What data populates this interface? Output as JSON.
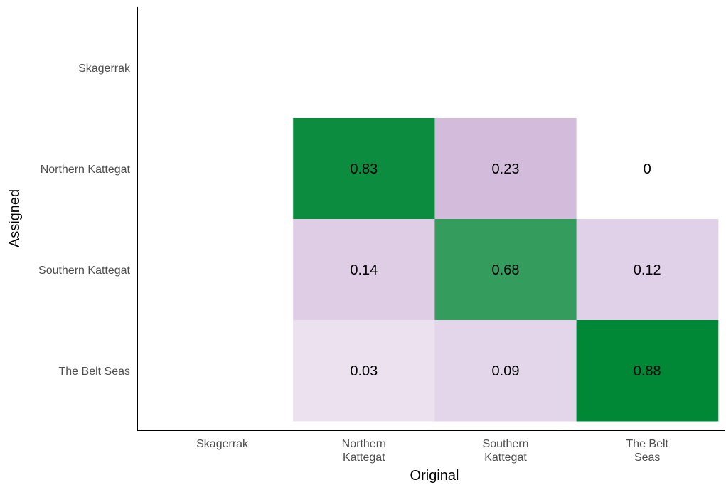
{
  "chart_data": {
    "type": "heatmap",
    "title": "",
    "xlabel": "Original",
    "ylabel": "Assigned",
    "x_categories": [
      "Skagerrak",
      "Northern Kattegat",
      "Southern Kattegat",
      "The Belt Seas"
    ],
    "x_tick_labels": [
      [
        "Skagerrak"
      ],
      [
        "Northern",
        "Kattegat"
      ],
      [
        "Southern",
        "Kattegat"
      ],
      [
        "The Belt",
        "Seas"
      ]
    ],
    "y_categories": [
      "Skagerrak",
      "Northern Kattegat",
      "Southern Kattegat",
      "The Belt Seas"
    ],
    "cells": [
      {
        "x": "Northern Kattegat",
        "y": "Northern Kattegat",
        "value": 0.83,
        "label": "0.83",
        "color": "#0b8c3f"
      },
      {
        "x": "Southern Kattegat",
        "y": "Northern Kattegat",
        "value": 0.23,
        "label": "0.23",
        "color": "#d3bbdb"
      },
      {
        "x": "The Belt Seas",
        "y": "Northern Kattegat",
        "value": 0,
        "label": "0",
        "color": "#ffffff"
      },
      {
        "x": "Northern Kattegat",
        "y": "Southern Kattegat",
        "value": 0.14,
        "label": "0.14",
        "color": "#dfcde6"
      },
      {
        "x": "Southern Kattegat",
        "y": "Southern Kattegat",
        "value": 0.68,
        "label": "0.68",
        "color": "#349d5e"
      },
      {
        "x": "The Belt Seas",
        "y": "Southern Kattegat",
        "value": 0.12,
        "label": "0.12",
        "color": "#e1d1e8"
      },
      {
        "x": "Northern Kattegat",
        "y": "The Belt Seas",
        "value": 0.03,
        "label": "0.03",
        "color": "#ece1ef"
      },
      {
        "x": "Southern Kattegat",
        "y": "The Belt Seas",
        "value": 0.09,
        "label": "0.09",
        "color": "#e4d6ea"
      },
      {
        "x": "The Belt Seas",
        "y": "The Belt Seas",
        "value": 0.88,
        "label": "0.88",
        "color": "#008837"
      }
    ],
    "color_scale": {
      "low": "#ffffff",
      "mid_low": "#c2a5cf",
      "high": "#008837"
    },
    "grid": false,
    "legend": "none"
  }
}
